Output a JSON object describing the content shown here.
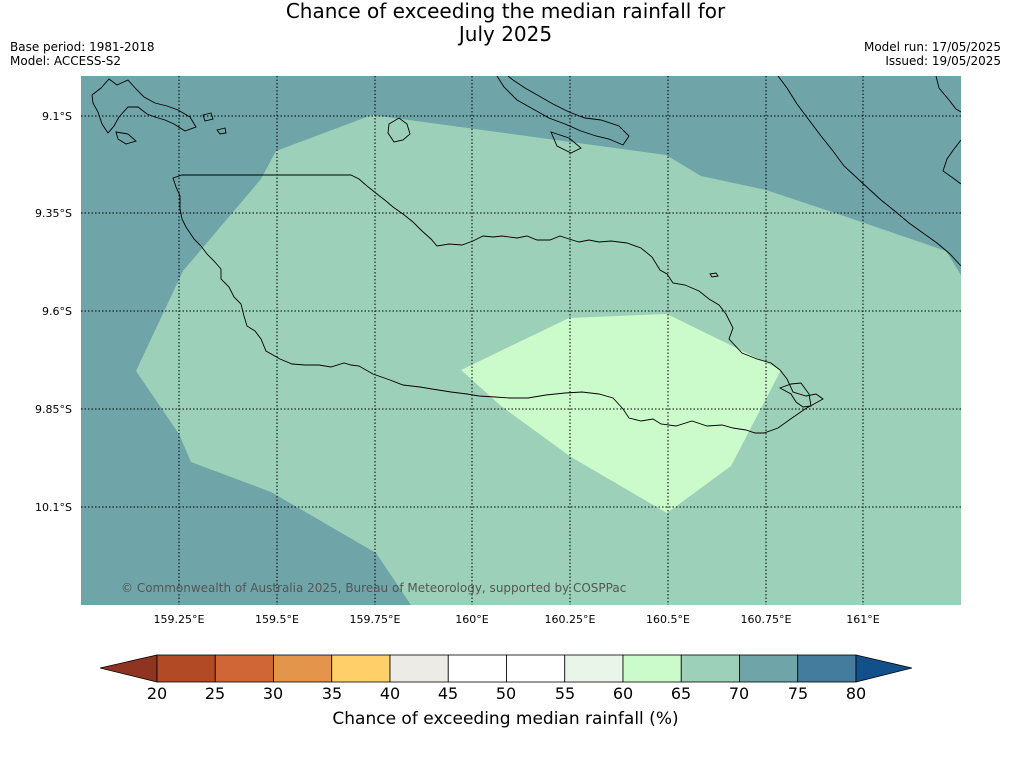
{
  "title": {
    "line1": "Chance of exceeding the median rainfall for",
    "line2": "July 2025"
  },
  "meta_left": {
    "base_period": "Base period: 1981-2018",
    "model": "Model: ACCESS-S2"
  },
  "meta_right": {
    "model_run": "Model run: 17/05/2025",
    "issued": "Issued: 19/05/2025"
  },
  "copyright": "© Commonwealth of Australia 2025, Bureau of Meteorology, supported by COSPPac",
  "map": {
    "lat_labels": [
      "9.1°S",
      "9.35°S",
      "9.6°S",
      "9.85°S",
      "10.1°S"
    ],
    "lat_values": [
      -9.1,
      -9.35,
      -9.6,
      -9.85,
      -10.1
    ],
    "lon_labels": [
      "159.25°E",
      "159.5°E",
      "159.75°E",
      "160°E",
      "160.25°E",
      "160.5°E",
      "160.75°E",
      "161°E"
    ],
    "lon_values": [
      159.25,
      159.5,
      159.75,
      160.0,
      160.25,
      160.5,
      160.75,
      161.0
    ],
    "lon_range": [
      159.0,
      161.25
    ],
    "lat_range": [
      -10.3,
      -9.0
    ],
    "gridlines": true,
    "regions": [
      {
        "category": "70-75",
        "color": "#6fa5a8",
        "description": "outer background"
      },
      {
        "category": "65-70",
        "color": "#9dd0b9",
        "description": "broad band over Guadalcanal"
      },
      {
        "category": "60-65",
        "color": "#cbfbca",
        "description": "south-east of Guadalcanal"
      }
    ],
    "land_outline_color": "#000000"
  },
  "colorbar": {
    "title": "Chance of exceeding median rainfall (%)",
    "ticks": [
      "20",
      "25",
      "30",
      "35",
      "40",
      "45",
      "50",
      "55",
      "60",
      "65",
      "70",
      "75",
      "80"
    ],
    "under_color": "#8f3420",
    "over_color": "#12508c",
    "colors": [
      "#b34a26",
      "#d06635",
      "#e3964b",
      "#ffd06a",
      "#edebe6",
      "#ffffff",
      "#ffffff",
      "#eaf5ea",
      "#cbfbca",
      "#9dd0b9",
      "#6fa5a8",
      "#437c9c"
    ]
  }
}
